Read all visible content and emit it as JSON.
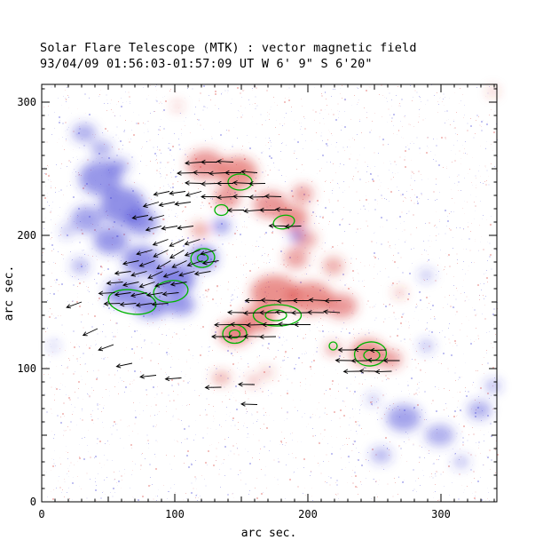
{
  "figure": {
    "background": "#ffffff"
  },
  "chart_data": {
    "type": "heatmap",
    "title": "Solar Flare Telescope (MTK) : vector magnetic field",
    "subtitle": "93/04/09  01:56:03-01:57:09 UT    W 6' 9\"  S 6'20\"",
    "xlabel": "arc sec.",
    "ylabel": "arc sec.",
    "xlim": [
      0,
      342
    ],
    "ylim": [
      0,
      313
    ],
    "x_major_ticks": [
      0,
      100,
      200,
      300
    ],
    "y_major_ticks": [
      0,
      100,
      200,
      300
    ],
    "minor_tick_step": 10,
    "colors": {
      "positive": "#d83430",
      "negative": "#3434d4",
      "contour": "#00b400",
      "arrow": "#000000",
      "axis": "#000000"
    },
    "blobs": [
      [
        44,
        243,
        16,
        13,
        "n",
        0.5
      ],
      [
        61,
        222,
        17,
        14,
        "n",
        0.55
      ],
      [
        34,
        212,
        12,
        10,
        "n",
        0.45
      ],
      [
        75,
        210,
        12,
        10,
        "n",
        0.5
      ],
      [
        52,
        196,
        13,
        10,
        "n",
        0.5
      ],
      [
        75,
        181,
        14,
        11,
        "n",
        0.55
      ],
      [
        99,
        167,
        16,
        12,
        "n",
        0.6
      ],
      [
        121,
        183,
        11,
        9,
        "n",
        0.6
      ],
      [
        62,
        157,
        14,
        10,
        "n",
        0.55
      ],
      [
        82,
        147,
        13,
        9,
        "n",
        0.55
      ],
      [
        104,
        148,
        11,
        8,
        "n",
        0.5
      ],
      [
        29,
        177,
        7,
        6,
        "n",
        0.35
      ],
      [
        19,
        203,
        5,
        5,
        "n",
        0.3
      ],
      [
        32,
        277,
        9,
        7,
        "n",
        0.4
      ],
      [
        45,
        265,
        8,
        6,
        "n",
        0.4
      ],
      [
        58,
        252,
        8,
        6,
        "n",
        0.4
      ],
      [
        135,
        207,
        7,
        6,
        "n",
        0.45
      ],
      [
        192,
        200,
        6,
        5,
        "n",
        0.5
      ],
      [
        272,
        63,
        13,
        10,
        "n",
        0.45
      ],
      [
        299,
        50,
        11,
        8,
        "n",
        0.4
      ],
      [
        329,
        69,
        9,
        7,
        "n",
        0.4
      ],
      [
        255,
        35,
        8,
        6,
        "n",
        0.35
      ],
      [
        339,
        87,
        6,
        5,
        "n",
        0.35
      ],
      [
        289,
        117,
        6,
        5,
        "n",
        0.3
      ],
      [
        315,
        30,
        6,
        5,
        "n",
        0.3
      ],
      [
        249,
        77,
        5,
        4,
        "n",
        0.3
      ],
      [
        289,
        170,
        6,
        5,
        "n",
        0.25
      ],
      [
        9,
        117,
        4,
        4,
        "n",
        0.25
      ],
      [
        123,
        253,
        14,
        11,
        "p",
        0.5
      ],
      [
        147,
        247,
        15,
        12,
        "p",
        0.55
      ],
      [
        139,
        228,
        10,
        8,
        "p",
        0.5
      ],
      [
        172,
        223,
        13,
        10,
        "p",
        0.5
      ],
      [
        189,
        213,
        11,
        9,
        "p",
        0.55
      ],
      [
        196,
        231,
        8,
        7,
        "p",
        0.45
      ],
      [
        119,
        204,
        7,
        6,
        "p",
        0.4
      ],
      [
        175,
        157,
        18,
        13,
        "p",
        0.55
      ],
      [
        202,
        153,
        17,
        12,
        "p",
        0.55
      ],
      [
        162,
        137,
        13,
        10,
        "p",
        0.55
      ],
      [
        145,
        127,
        12,
        9,
        "p",
        0.6
      ],
      [
        225,
        147,
        12,
        9,
        "p",
        0.5
      ],
      [
        245,
        112,
        13,
        10,
        "p",
        0.55
      ],
      [
        262,
        107,
        9,
        7,
        "p",
        0.45
      ],
      [
        191,
        183,
        9,
        8,
        "p",
        0.45
      ],
      [
        199,
        197,
        8,
        7,
        "p",
        0.4
      ],
      [
        219,
        177,
        8,
        7,
        "p",
        0.4
      ],
      [
        219,
        115,
        6,
        5,
        "p",
        0.45
      ],
      [
        135,
        93,
        7,
        5,
        "p",
        0.4
      ],
      [
        159,
        91,
        5,
        4,
        "p",
        0.35
      ],
      [
        169,
        97,
        5,
        4,
        "p",
        0.3
      ],
      [
        269,
        157,
        5,
        4,
        "p",
        0.3
      ],
      [
        339,
        308,
        4,
        4,
        "p",
        0.3
      ],
      [
        102,
        297,
        4,
        4,
        "p",
        0.25
      ]
    ],
    "contours": [
      [
        149,
        240,
        9,
        6,
        0
      ],
      [
        182,
        210,
        8,
        5,
        -12
      ],
      [
        135,
        219,
        5,
        4,
        0
      ],
      [
        121,
        183,
        9,
        7,
        -10
      ],
      [
        121,
        183,
        4,
        3,
        0
      ],
      [
        68,
        150,
        18,
        9,
        8
      ],
      [
        97,
        158,
        13,
        8,
        -8
      ],
      [
        177,
        140,
        18,
        8,
        0
      ],
      [
        176,
        140,
        8,
        4,
        0
      ],
      [
        145,
        126,
        9,
        7,
        0
      ],
      [
        145,
        126,
        4,
        3,
        0
      ],
      [
        247,
        111,
        12,
        9,
        -5
      ],
      [
        248,
        110,
        6,
        4,
        0
      ],
      [
        219,
        117,
        3,
        3,
        0
      ]
    ],
    "arrows": [
      [
        95,
        197,
        200
      ],
      [
        107,
        197,
        205
      ],
      [
        119,
        197,
        198
      ],
      [
        83,
        189,
        195
      ],
      [
        95,
        189,
        205
      ],
      [
        107,
        189,
        210
      ],
      [
        119,
        189,
        200
      ],
      [
        131,
        189,
        195
      ],
      [
        73,
        181,
        192
      ],
      [
        85,
        181,
        200
      ],
      [
        97,
        181,
        210
      ],
      [
        109,
        181,
        205
      ],
      [
        121,
        181,
        198
      ],
      [
        133,
        181,
        190
      ],
      [
        67,
        173,
        188
      ],
      [
        79,
        173,
        195
      ],
      [
        91,
        173,
        205
      ],
      [
        103,
        173,
        200
      ],
      [
        115,
        173,
        195
      ],
      [
        127,
        173,
        190
      ],
      [
        61,
        165,
        185
      ],
      [
        73,
        165,
        192
      ],
      [
        85,
        165,
        198
      ],
      [
        97,
        165,
        195
      ],
      [
        109,
        165,
        190
      ],
      [
        55,
        157,
        183
      ],
      [
        67,
        157,
        188
      ],
      [
        79,
        157,
        192
      ],
      [
        91,
        157,
        190
      ],
      [
        103,
        157,
        186
      ],
      [
        59,
        149,
        182
      ],
      [
        71,
        149,
        185
      ],
      [
        83,
        149,
        188
      ],
      [
        95,
        149,
        184
      ],
      [
        96,
        233,
        192
      ],
      [
        108,
        233,
        188
      ],
      [
        120,
        233,
        195
      ],
      [
        88,
        225,
        196
      ],
      [
        100,
        225,
        192
      ],
      [
        112,
        225,
        188
      ],
      [
        80,
        215,
        190
      ],
      [
        92,
        215,
        195
      ],
      [
        90,
        207,
        195
      ],
      [
        102,
        207,
        190
      ],
      [
        114,
        207,
        188
      ],
      [
        120,
        255,
        184
      ],
      [
        132,
        255,
        180
      ],
      [
        144,
        255,
        177
      ],
      [
        114,
        247,
        182
      ],
      [
        126,
        247,
        179
      ],
      [
        138,
        247,
        183
      ],
      [
        150,
        247,
        180
      ],
      [
        162,
        247,
        176
      ],
      [
        120,
        239,
        178
      ],
      [
        132,
        239,
        182
      ],
      [
        144,
        239,
        180
      ],
      [
        156,
        239,
        177
      ],
      [
        168,
        239,
        181
      ],
      [
        132,
        229,
        180
      ],
      [
        144,
        229,
        183
      ],
      [
        156,
        229,
        179
      ],
      [
        168,
        229,
        182
      ],
      [
        180,
        229,
        178
      ],
      [
        152,
        219,
        181
      ],
      [
        164,
        219,
        184
      ],
      [
        176,
        219,
        180
      ],
      [
        188,
        219,
        177
      ],
      [
        183,
        207,
        179
      ],
      [
        195,
        207,
        182
      ],
      [
        165,
        151,
        180
      ],
      [
        177,
        151,
        178
      ],
      [
        189,
        151,
        182
      ],
      [
        201,
        151,
        180
      ],
      [
        213,
        151,
        177
      ],
      [
        225,
        151,
        181
      ],
      [
        152,
        142,
        179
      ],
      [
        164,
        142,
        182
      ],
      [
        176,
        142,
        180
      ],
      [
        188,
        142,
        178
      ],
      [
        200,
        142,
        181
      ],
      [
        212,
        142,
        179
      ],
      [
        224,
        142,
        176
      ],
      [
        142,
        133,
        181
      ],
      [
        154,
        133,
        179
      ],
      [
        166,
        133,
        182
      ],
      [
        178,
        133,
        180
      ],
      [
        190,
        133,
        178
      ],
      [
        202,
        133,
        180
      ],
      [
        140,
        124,
        180
      ],
      [
        152,
        124,
        182
      ],
      [
        164,
        124,
        179
      ],
      [
        176,
        124,
        181
      ],
      [
        235,
        114,
        180
      ],
      [
        247,
        114,
        178
      ],
      [
        259,
        114,
        182
      ],
      [
        233,
        106,
        179
      ],
      [
        245,
        106,
        181
      ],
      [
        257,
        106,
        178
      ],
      [
        269,
        106,
        180
      ],
      [
        239,
        98,
        181
      ],
      [
        251,
        98,
        179
      ],
      [
        263,
        98,
        182
      ],
      [
        30,
        150,
        200
      ],
      [
        42,
        130,
        205
      ],
      [
        54,
        118,
        200
      ],
      [
        68,
        104,
        192
      ],
      [
        86,
        95,
        186
      ],
      [
        105,
        93,
        184
      ],
      [
        135,
        86,
        181
      ],
      [
        160,
        88,
        179
      ],
      [
        162,
        73,
        178
      ]
    ],
    "noise": {
      "count": 3600
    }
  }
}
